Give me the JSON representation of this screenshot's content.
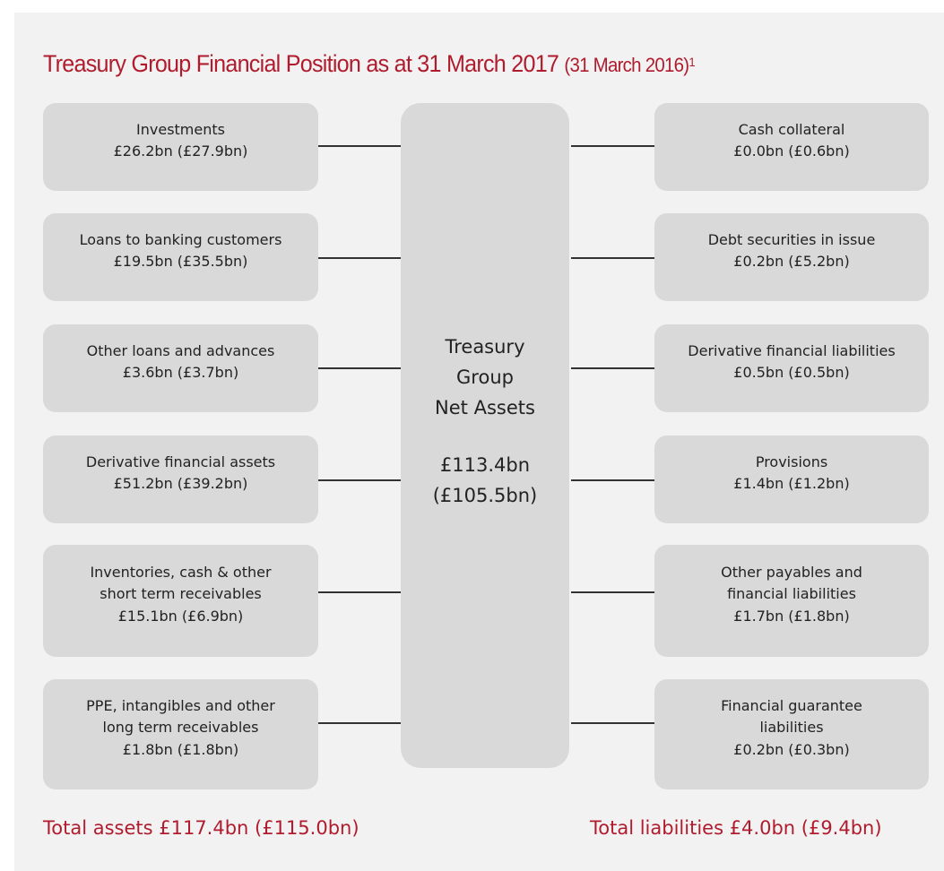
{
  "title": "Treasury Group Financial Position as at 31 March 2017",
  "title_suffix": "(31 March 2016)",
  "title_note": "1",
  "assets": [
    {
      "lines": [
        "Investments",
        "£26.2bn (£27.9bn)"
      ]
    },
    {
      "lines": [
        "Loans to banking customers",
        "£19.5bn (£35.5bn)"
      ]
    },
    {
      "lines": [
        "Other loans and advances",
        "£3.6bn (£3.7bn)"
      ]
    },
    {
      "lines": [
        "Derivative financial assets",
        "£51.2bn (£39.2bn)"
      ]
    },
    {
      "lines": [
        "Inventories, cash & other",
        "short term receivables",
        "£15.1bn (£6.9bn)"
      ]
    },
    {
      "lines": [
        "PPE, intangibles and other",
        "long term receivables",
        "£1.8bn (£1.8bn)"
      ]
    }
  ],
  "center": {
    "lines": [
      "Treasury",
      "Group",
      "Net Assets",
      "£113.4bn",
      "(£105.5bn)"
    ]
  },
  "liabilities": [
    {
      "lines": [
        "Cash collateral",
        "£0.0bn (£0.6bn)"
      ]
    },
    {
      "lines": [
        "Debt securities in issue",
        "£0.2bn (£5.2bn)"
      ]
    },
    {
      "lines": [
        "Derivative financial liabilities",
        "£0.5bn (£0.5bn)"
      ]
    },
    {
      "lines": [
        "Provisions",
        "£1.4bn (£1.2bn)"
      ]
    },
    {
      "lines": [
        "Other payables and",
        "financial liabilities",
        "£1.7bn (£1.8bn)"
      ]
    },
    {
      "lines": [
        "Financial guarantee",
        "liabilities",
        "£0.2bn (£0.3bn)"
      ]
    }
  ],
  "total_assets": "Total assets £117.4bn (£115.0bn)",
  "total_liabilities": "Total liabilities £4.0bn (£9.4bn)"
}
